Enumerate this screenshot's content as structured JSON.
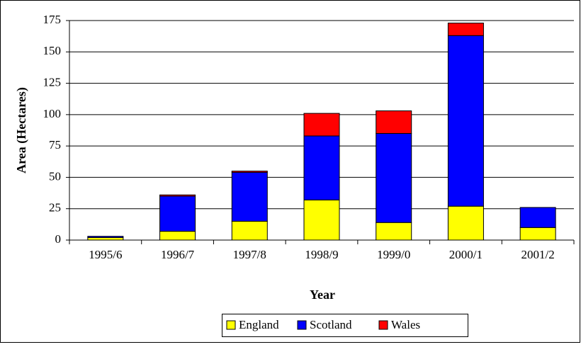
{
  "chart_data": {
    "type": "stacked-bar",
    "categories": [
      "1995/6",
      "1996/7",
      "1997/8",
      "1998/9",
      "1999/0",
      "2000/1",
      "2001/2"
    ],
    "series": [
      {
        "name": "England",
        "color": "#ffff00",
        "values": [
          2,
          7,
          15,
          32,
          14,
          27,
          10
        ]
      },
      {
        "name": "Scotland",
        "color": "#0000ff",
        "values": [
          1,
          28,
          39,
          51,
          71,
          136,
          16
        ]
      },
      {
        "name": "Wales",
        "color": "#ff0000",
        "values": [
          0,
          1,
          1,
          18,
          18,
          10,
          0
        ]
      }
    ],
    "xlabel": "Year",
    "ylabel": "Area (Hectares)",
    "ylim": [
      0,
      175
    ],
    "yticks": [
      0,
      25,
      50,
      75,
      100,
      125,
      150,
      175
    ],
    "grid": true
  }
}
